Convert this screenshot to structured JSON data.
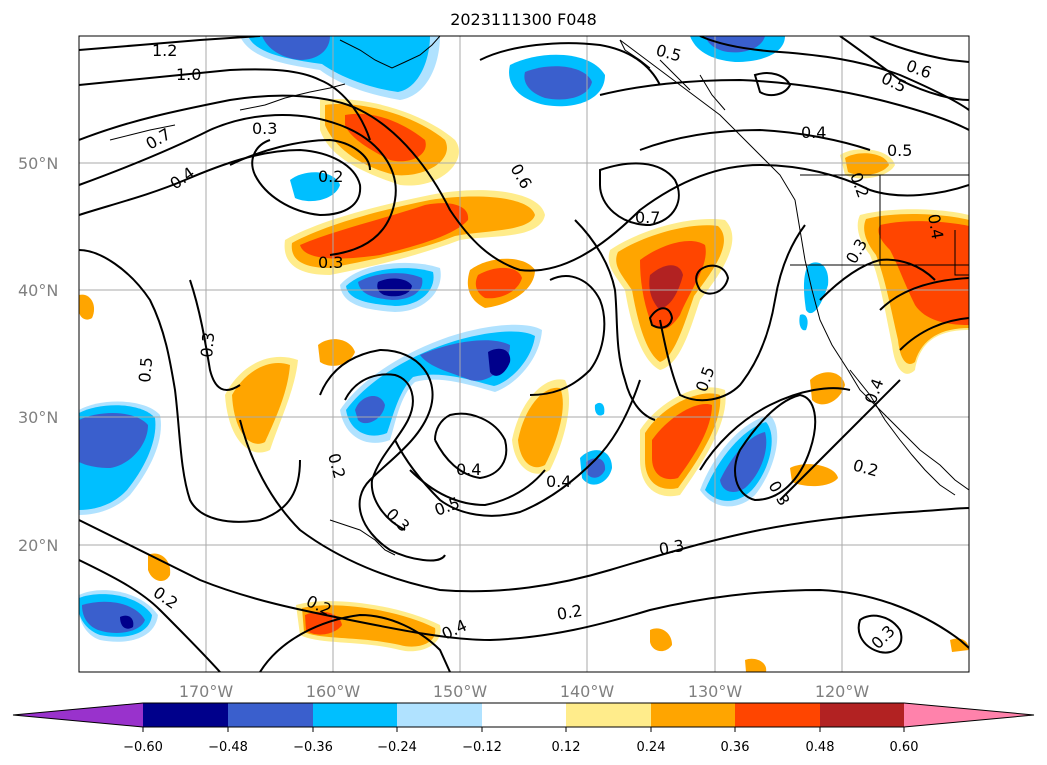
{
  "title": "2023111300 F048",
  "map": {
    "lat_labels": [
      "50°N",
      "40°N",
      "30°N",
      "20°N"
    ],
    "lon_labels": [
      "170°W",
      "160°W",
      "150°W",
      "140°W",
      "130°W",
      "120°W"
    ],
    "grid": true,
    "contour_color": "#000000",
    "contour_labels": [
      "1.2",
      "1.0",
      "0.7",
      "0.3",
      "0.4",
      "0.2",
      "0.3",
      "0.6",
      "0.7",
      "0.5",
      "0.4",
      "0.5",
      "0.6",
      "0.5",
      "0.3",
      "0.3",
      "0.5",
      "0.2",
      "0.3",
      "0.4",
      "0.5",
      "0.4",
      "0.5",
      "0.3",
      "0.3",
      "0.2",
      "0.2",
      "0.4",
      "0.2",
      "0.3",
      "0.4",
      "0.2",
      "0.4",
      "0.2"
    ]
  },
  "colorbar": {
    "tick_labels": [
      "−0.60",
      "−0.48",
      "−0.36",
      "−0.24",
      "−0.12",
      "0.12",
      "0.24",
      "0.36",
      "0.48",
      "0.60"
    ],
    "colors": [
      "#9932cc",
      "#00008b",
      "#3a5fcd",
      "#00bfff",
      "#b0e2ff",
      "#ffffff",
      "#ffec8b",
      "#ffa500",
      "#ff4500",
      "#b22222",
      "#ff82ab"
    ]
  }
}
